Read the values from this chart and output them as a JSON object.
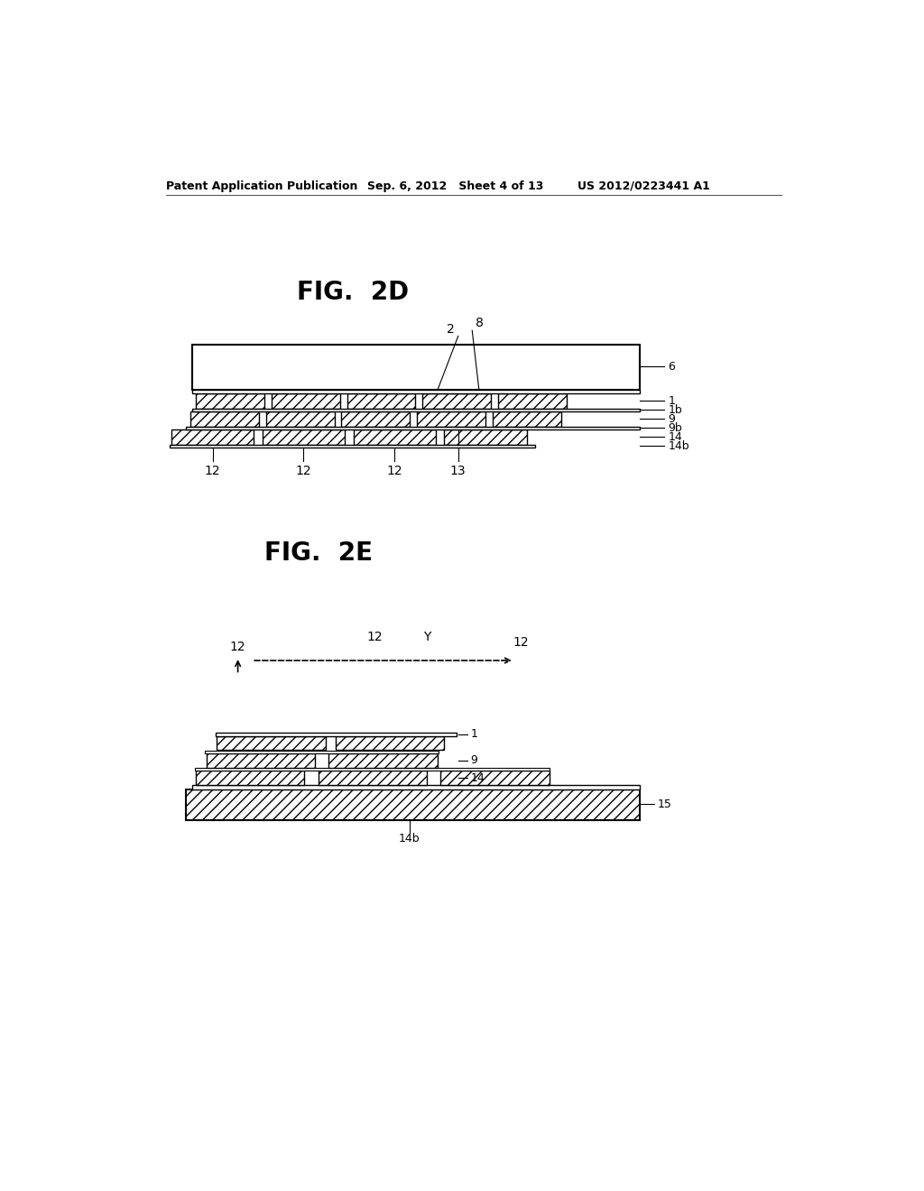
{
  "bg_color": "#ffffff",
  "header_left": "Patent Application Publication",
  "header_mid": "Sep. 6, 2012   Sheet 4 of 13",
  "header_right": "US 2012/0223441 A1",
  "fig2d_title": "FIG.  2D",
  "fig2e_title": "FIG.  2E",
  "line_color": "#000000",
  "hatch_pattern": "///",
  "header_fontsize": 9,
  "title_fontsize": 20,
  "label_fontsize": 10
}
